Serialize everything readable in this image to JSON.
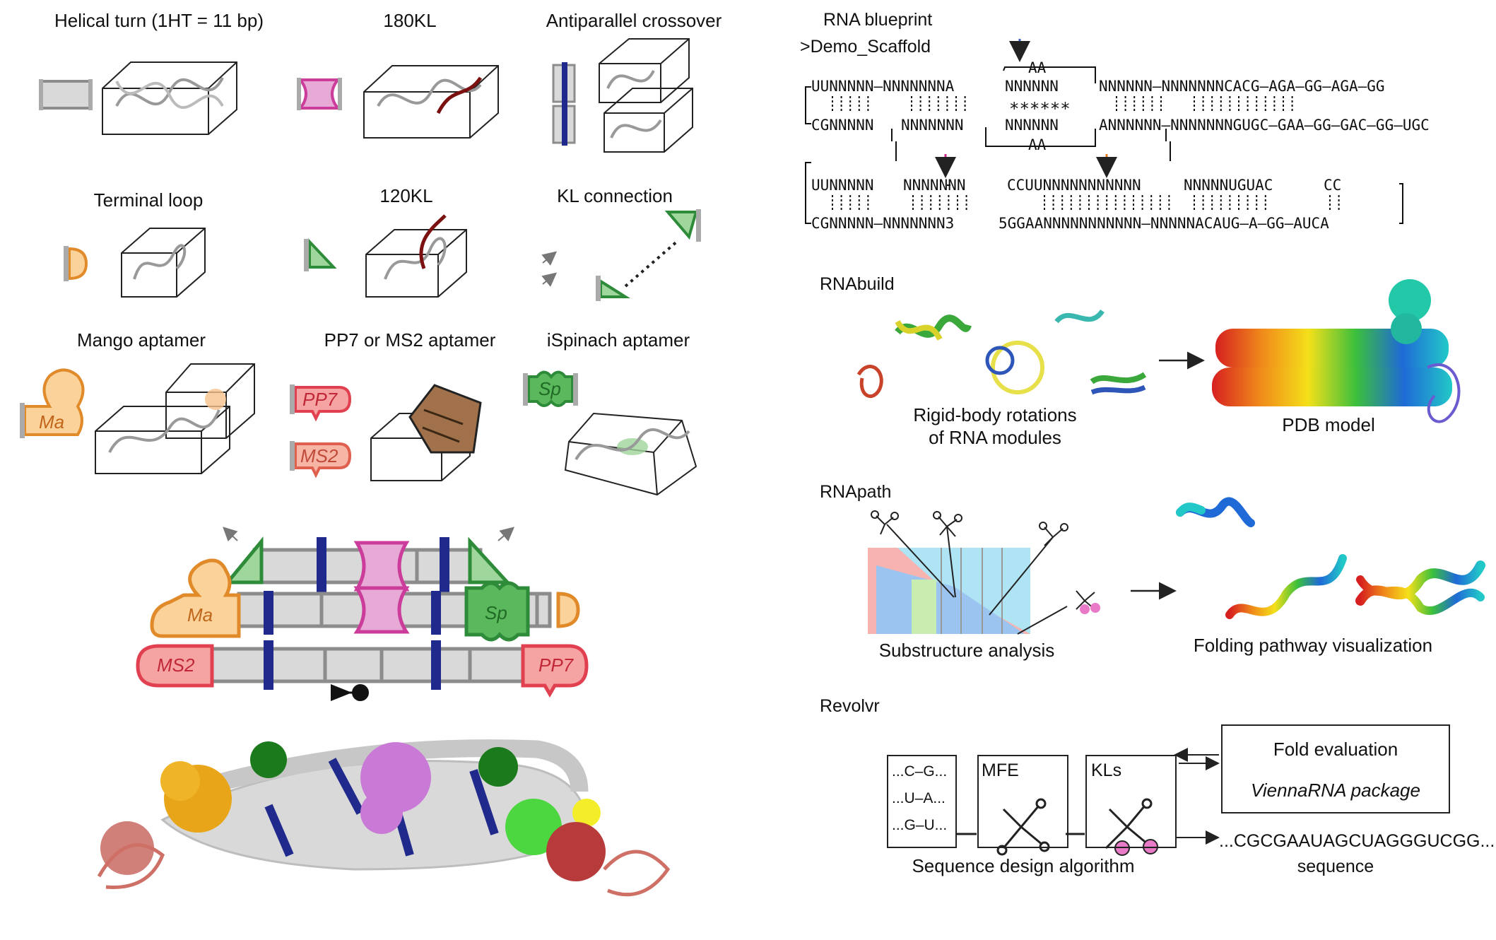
{
  "panel_left": {
    "modules": {
      "helical_turn": "Helical turn (1HT = 11 bp)",
      "kl180": "180KL",
      "antiparallel": "Antiparallel crossover",
      "terminal_loop": "Terminal loop",
      "kl120": "120KL",
      "kl_connection": "KL connection",
      "mango": "Mango aptamer",
      "pp7_ms2": "PP7 or MS2 aptamer",
      "ispinach": "iSpinach aptamer"
    },
    "tags": {
      "ma": "Ma",
      "pp7": "PP7",
      "ms2": "MS2",
      "sp": "Sp"
    }
  },
  "panel_right": {
    "blueprint": {
      "title": "RNA blueprint",
      "name": ">Demo_Scaffold",
      "rows": {
        "r1": "UUNNNNN—NNNNNNNA",
        "r1b": "NNNNNN",
        "r1c": "NNNNNN—NNNNNNNCACG—AGA—GG—AGA—GG",
        "aa_top": "AA",
        "stars": "******",
        "r2": "CGNNNNN",
        "r2b": "NNNNNNN",
        "r2c": "NNNNNN",
        "r2d": "ANNNNNN—NNNNNNNGUGC—GAA—GG—GAC—GG—UGC",
        "aa_bot": "AA",
        "r3": "UUNNNNN",
        "r3b": "NNNNNNN",
        "r3c": "CCUUNNNNNNNNNNN",
        "r3d": "NNNNNUGUAC",
        "r3e": "CC",
        "r4": "CGNNNNN—NNNNNNN3",
        "r4b": "5GGAANNNNNNNNNNN—NNNNNACAUG—A—GG—AUCA"
      }
    },
    "rnabuild": {
      "title": "RNAbuild",
      "caption1": "Rigid-body rotations",
      "caption2": "of RNA modules",
      "caption3": "PDB model"
    },
    "rnapath": {
      "title": "RNApath",
      "caption1": "Substructure analysis",
      "caption2": "Folding pathway visualization"
    },
    "revolvr": {
      "title": "Revolvr",
      "seq_lines": [
        "...C–G...",
        "...U–A...",
        "...G–U..."
      ],
      "mfe": "MFE",
      "kls": "KLs",
      "fold_eval": "Fold evaluation",
      "vienna": "ViennaRNA package",
      "algorithm": "Sequence design algorithm",
      "sequence": "...CGCGAAUAGCUAGGGUCGG...",
      "sequence_label": "sequence"
    }
  },
  "colors": {
    "gray": "#d9d9d9",
    "edge": "#8c8c8c",
    "navy": "#1f2a8c",
    "magenta": "#cc3d9b",
    "pinkfill": "#e7a9d6",
    "green": "#2e8b3a",
    "lightgreen": "#9fd69b",
    "orange": "#e08a2a",
    "peach": "#fbd39a",
    "red": "#e0404f",
    "salmon": "#f6a3a3",
    "brown": "#a0714a",
    "spgreen": "#5cb85c"
  }
}
